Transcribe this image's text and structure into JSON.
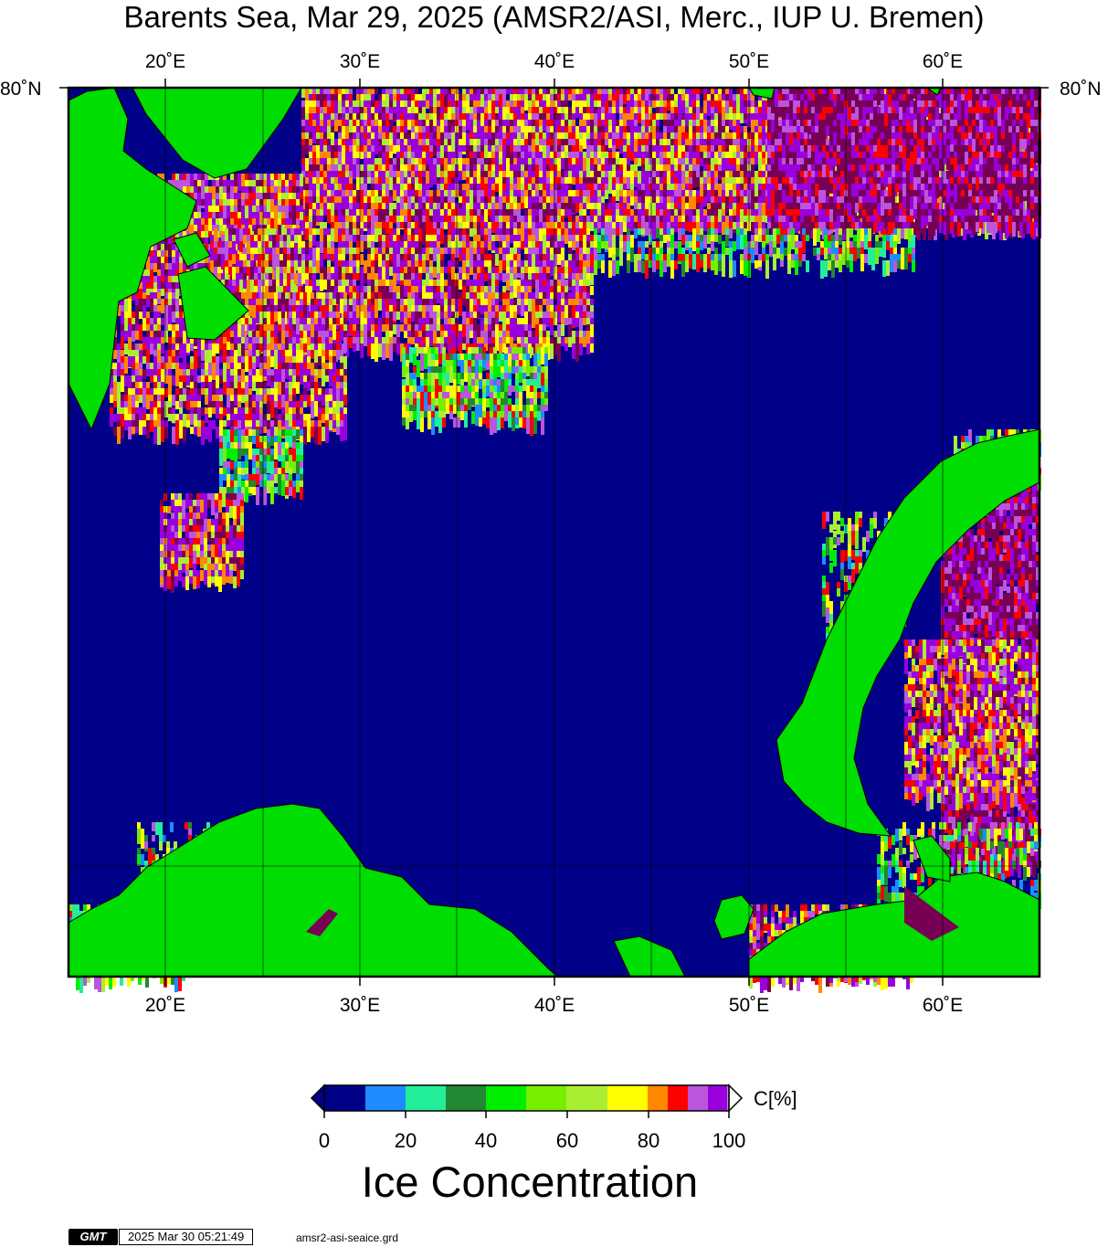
{
  "title": "Barents Sea, Mar 29, 2025 (AMSR2/ASI, Merc., IUP U. Bremen)",
  "longitude_ticks": [
    "20˚E",
    "30˚E",
    "40˚E",
    "50˚E",
    "60˚E"
  ],
  "latitude_label": "80˚N",
  "colorbar": {
    "unit": "C[%]",
    "tick_labels": [
      "0",
      "20",
      "40",
      "60",
      "80",
      "100"
    ],
    "title": "Ice Concentration",
    "colors": [
      "#000088",
      "#1e8cff",
      "#22ee99",
      "#228833",
      "#00ee00",
      "#77ee00",
      "#aaee33",
      "#ffff00",
      "#ff8800",
      "#ff0000",
      "#bb55dd",
      "#9900dd"
    ]
  },
  "gmt": {
    "logo": "GMT",
    "timestamp": "2025 Mar 30 05:21:49",
    "grid_file": "amsr2-asi-seaice.grd"
  },
  "legend_colors": {
    "ocean": "#000088",
    "land": "#00dd00",
    "ice_dense": "#770055"
  }
}
